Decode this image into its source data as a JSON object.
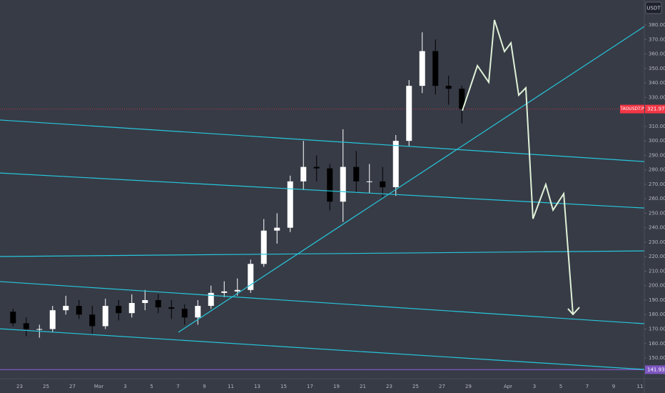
{
  "chart_data": {
    "type": "candlestick",
    "currency": "USDT",
    "symbol": "TAOUSDT.P",
    "last_price": 321.97,
    "last_price_color": "#f23645",
    "level": 141.93,
    "level_color": "#7e57c2",
    "up_color": "#ffffff",
    "down_color": "#000000",
    "categories": [
      null,
      "23",
      null,
      "25",
      null,
      "27",
      null,
      "Mar",
      null,
      "3",
      null,
      "5",
      null,
      "7",
      null,
      "9",
      null,
      "11",
      null,
      "13",
      null,
      "15",
      null,
      "17",
      null,
      "19",
      null,
      "21",
      null,
      "23",
      null,
      "25",
      null,
      "27",
      null,
      "29",
      null,
      null,
      "Apr",
      null,
      "3",
      null,
      "5",
      null,
      "7",
      null,
      "9",
      null,
      "11"
    ],
    "open": [
      182,
      174,
      170,
      170,
      183,
      186,
      180,
      172,
      186,
      181,
      188,
      190,
      185,
      184,
      178,
      186,
      195,
      196,
      197,
      215,
      238,
      240,
      272,
      282,
      281,
      258,
      282,
      272,
      272,
      268,
      300,
      338,
      362,
      338,
      336,
      null,
      null,
      null,
      null,
      null,
      null,
      null,
      null,
      null,
      null,
      null,
      null,
      null,
      null
    ],
    "high": [
      184,
      178,
      173,
      186,
      193,
      190,
      186,
      191,
      190,
      194,
      197,
      194,
      190,
      187,
      190,
      200,
      203,
      205,
      218,
      246,
      250,
      276,
      300,
      290,
      284,
      308,
      293,
      284,
      282,
      304,
      342,
      375,
      370,
      345,
      338,
      null,
      null,
      null,
      null,
      null,
      null,
      null,
      null,
      null,
      null,
      null,
      null,
      null,
      null
    ],
    "low": [
      172,
      165,
      164,
      168,
      180,
      177,
      166,
      170,
      176,
      178,
      183,
      181,
      177,
      173,
      173,
      184,
      192,
      193,
      195,
      213,
      229,
      237,
      266,
      272,
      252,
      244,
      264,
      264,
      261,
      262,
      296,
      333,
      332,
      325,
      312,
      null,
      null,
      null,
      null,
      null,
      null,
      null,
      null,
      null,
      null,
      null,
      null,
      null,
      null
    ],
    "close": [
      174,
      170,
      170,
      183,
      186,
      180,
      172,
      186,
      181,
      188,
      190,
      185,
      184,
      178,
      186,
      195,
      196,
      197,
      215,
      238,
      240,
      272,
      282,
      281,
      258,
      282,
      272,
      272,
      268,
      300,
      338,
      362,
      338,
      336,
      322,
      null,
      null,
      null,
      null,
      null,
      null,
      null,
      null,
      null,
      null,
      null,
      null,
      null,
      null
    ],
    "ylim": [
      135.7,
      397.3
    ],
    "yticks": [
      {
        "value": 150,
        "label": "150.00"
      },
      {
        "value": 160,
        "label": "160.00"
      },
      {
        "value": 170,
        "label": "170.00"
      },
      {
        "value": 180,
        "label": "180.00"
      },
      {
        "value": 190,
        "label": "190.00"
      },
      {
        "value": 200,
        "label": "200.00"
      },
      {
        "value": 210,
        "label": "210.00"
      },
      {
        "value": 220,
        "label": "220.00"
      },
      {
        "value": 230,
        "label": "230.00"
      },
      {
        "value": 240,
        "label": "240.00"
      },
      {
        "value": 250,
        "label": "250.00"
      },
      {
        "value": 260,
        "label": "260.00"
      },
      {
        "value": 270,
        "label": "270.00"
      },
      {
        "value": 280,
        "label": "280.00"
      },
      {
        "value": 290,
        "label": "290.00"
      },
      {
        "value": 300,
        "label": "300.00"
      },
      {
        "value": 310,
        "label": "310.00"
      },
      {
        "value": 320,
        "label": "320.00"
      },
      {
        "value": 330,
        "label": "330.00"
      },
      {
        "value": 340,
        "label": "340.00"
      },
      {
        "value": 350,
        "label": "350.00"
      },
      {
        "value": 360,
        "label": "360.00"
      },
      {
        "value": 370,
        "label": "370.00"
      },
      {
        "value": 380,
        "label": "380.00"
      }
    ],
    "trend_line_color": "#26c6da",
    "trend_lines": [
      {
        "x": [
          -0.49,
          48.32
        ],
        "y": [
          314.4,
          285.7
        ]
      },
      {
        "x": [
          -0.49,
          48.32
        ],
        "y": [
          277.8,
          253.6
        ]
      },
      {
        "x": [
          -0.49,
          48.32
        ],
        "y": [
          220.1,
          224.0
        ]
      },
      {
        "x": [
          -0.49,
          48.32
        ],
        "y": [
          202.8,
          173.7
        ]
      },
      {
        "x": [
          -0.49,
          48.32
        ],
        "y": [
          170.2,
          142.1
        ]
      },
      {
        "x": [
          13.03,
          48.32
        ],
        "y": [
          167.8,
          379.0
        ]
      }
    ],
    "projection_color": "#e0f2d8",
    "projection": {
      "x": [
        34.54,
        35.68,
        36.54,
        36.97,
        37.73,
        38.22,
        38.81,
        39.35,
        39.89,
        40.86,
        41.41,
        42.22,
        42.92
      ],
      "y": [
        320.8,
        351.9,
        340.5,
        383.5,
        361.7,
        367.7,
        331.6,
        336.6,
        246.2,
        269.9,
        252.2,
        263.5,
        180.1
      ]
    }
  }
}
